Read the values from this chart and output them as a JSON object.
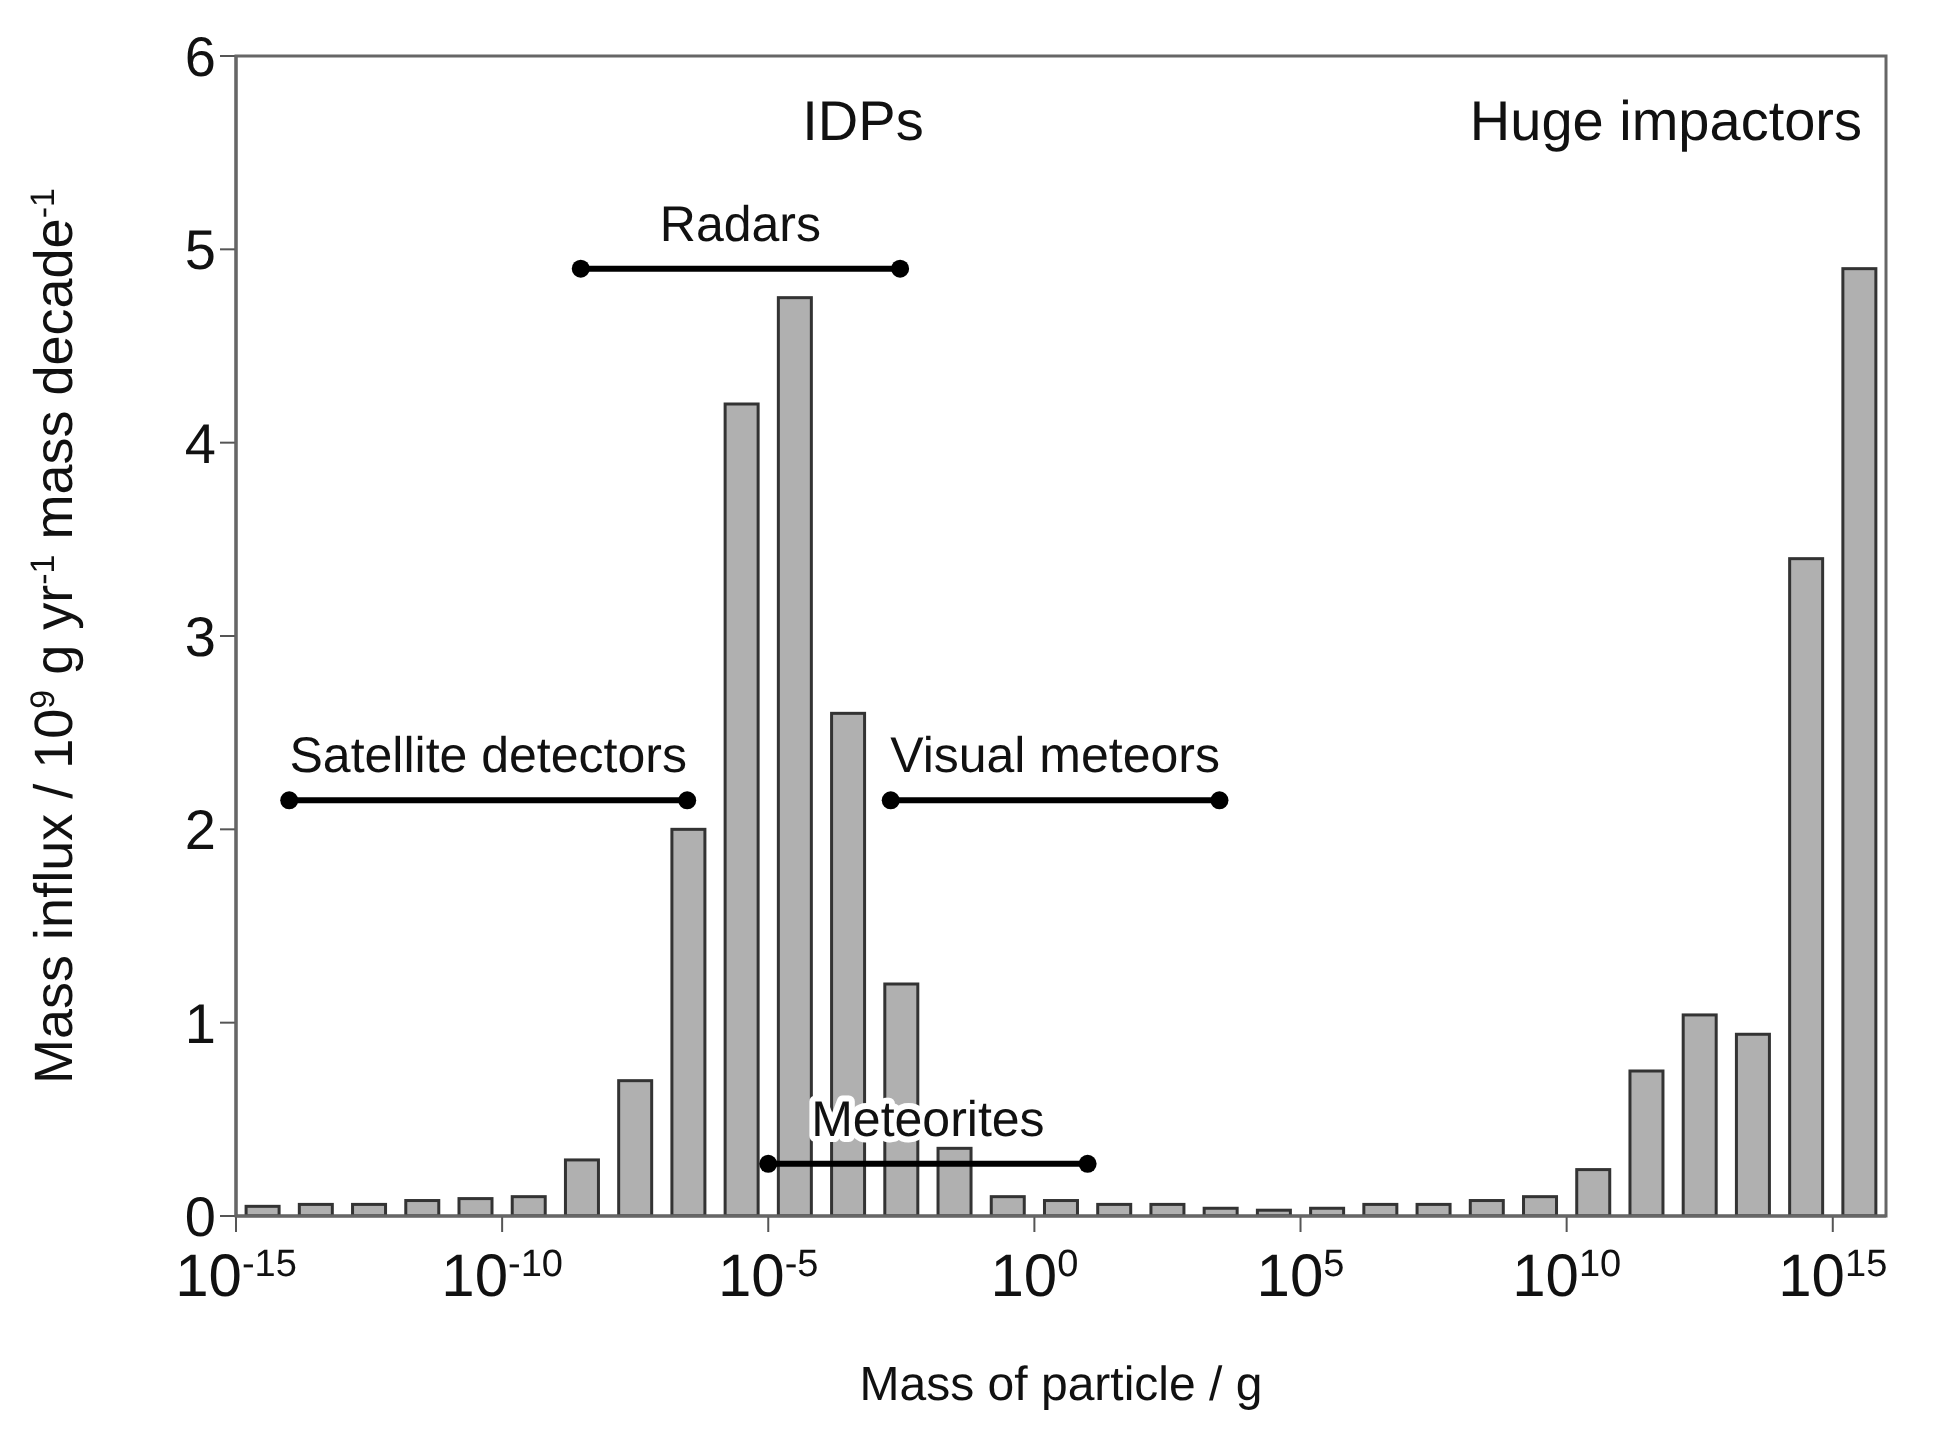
{
  "chart_data": {
    "type": "bar",
    "xlabel": "Mass of particle / g",
    "ylabel": "Mass influx / 10$^{9}$ g yr$^{-1}$ mass decade$^{-1}$",
    "log": "x",
    "xlim": [
      1e-15,
      1e+16
    ],
    "xticks": [
      {
        "value": 1e-15,
        "label": "10$^{-15}$"
      },
      {
        "value": 1e-10,
        "label": "10$^{-10}$"
      },
      {
        "value": 1e-05,
        "label": "10$^{-5}$"
      },
      {
        "value": 1,
        "label": "10$^{0}$"
      },
      {
        "value": 100000,
        "label": "10$^{5}$"
      },
      {
        "value": 10000000000.0,
        "label": "10$^{10}$"
      },
      {
        "value": 1000000000000000.0,
        "label": "10$^{15}$"
      }
    ],
    "ylim": [
      0,
      6
    ],
    "yticks": [
      0,
      1,
      2,
      3,
      4,
      5,
      6
    ],
    "annotations": [
      "IDPs",
      "Huge impactors"
    ],
    "series": [
      {
        "color": "#b0b0b0",
        "x": [
          3.16e-15,
          3.16e-14,
          3.16e-13,
          3.16e-12,
          3.16e-11,
          3.16e-10,
          3.16e-09,
          3.16e-08,
          3.16e-07,
          3.16e-06,
          3.16e-05,
          0.000316,
          0.00316,
          0.0316,
          0.316,
          3.16,
          31.6,
          316,
          3160,
          31600,
          316000,
          3160000.0,
          31600000.0,
          316000000.0,
          3160000000.0,
          31600000000.0,
          316000000000.0,
          3160000000000.0,
          31600000000000.0,
          316000000000000.0,
          3160000000000000.0
        ],
        "values": [
          0.05,
          0.06,
          0.06,
          0.08,
          0.09,
          0.1,
          0.29,
          0.7,
          2.0,
          4.2,
          4.75,
          2.6,
          1.2,
          0.35,
          0.1,
          0.08,
          0.06,
          0.06,
          0.04,
          0.03,
          0.04,
          0.06,
          0.06,
          0.08,
          0.1,
          0.24,
          0.75,
          1.04,
          0.94,
          3.4,
          4.9
        ]
      },
      {
        "type": "line",
        "name": "Satellite detectors",
        "color": "#000000",
        "marker": "circle",
        "x": [
          1e-14,
          3e-07
        ],
        "values": [
          2.15,
          2.15
        ]
      },
      {
        "type": "line",
        "name": "Radars",
        "color": "#000000",
        "marker": "circle",
        "x": [
          3e-09,
          0.003
        ],
        "values": [
          4.9,
          4.9
        ]
      },
      {
        "type": "line",
        "name": "Visual meteors",
        "color": "#000000",
        "marker": "circle",
        "x": [
          0.002,
          3000
        ],
        "values": [
          2.15,
          2.15
        ]
      },
      {
        "type": "line",
        "name": "Meteorites",
        "color": "#000000",
        "marker": "circle",
        "x": [
          1e-05,
          10
        ],
        "values": [
          0.27,
          0.27
        ]
      }
    ]
  }
}
